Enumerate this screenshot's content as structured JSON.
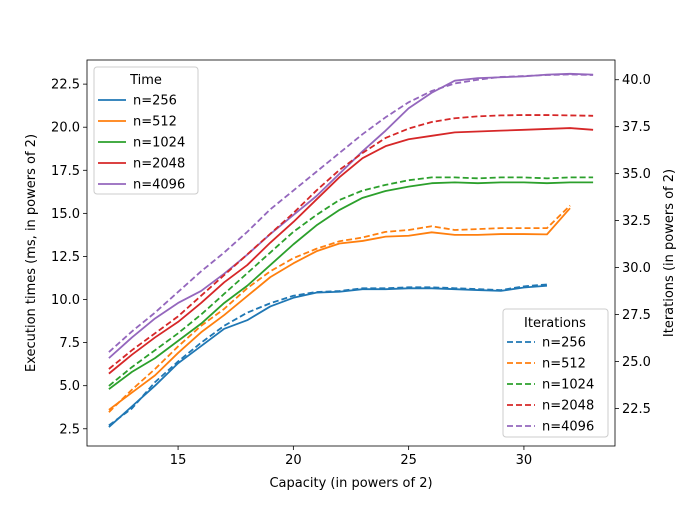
{
  "chart_data": {
    "type": "line",
    "xlabel": "Capacity (in powers of 2)",
    "ylabel_left": "Execution times (ms, in powers of 2)",
    "ylabel_right": "Iterations (in powers of 2)",
    "xlim": [
      11.05,
      33.95
    ],
    "ylim_left": [
      1.5,
      23.9
    ],
    "ylim_right": [
      20.5,
      41.05
    ],
    "xticks": [
      15,
      20,
      25,
      30
    ],
    "yticks_left": [
      2.5,
      5.0,
      7.5,
      10.0,
      12.5,
      15.0,
      17.5,
      20.0,
      22.5
    ],
    "yticks_right": [
      22.5,
      25.0,
      27.5,
      30.0,
      32.5,
      35.0,
      37.5,
      40.0
    ],
    "legend_time": {
      "title": "Time",
      "position": "upper left"
    },
    "legend_iterations": {
      "title": "Iterations",
      "position": "lower right"
    },
    "colors": {
      "n=256": "#1f77b4",
      "n=512": "#ff7f0e",
      "n=1024": "#2ca02c",
      "n=2048": "#d62728",
      "n=4096": "#9467bd"
    },
    "time_series": [
      {
        "name": "n=256",
        "x": [
          12,
          13,
          14,
          15,
          16,
          17,
          18,
          19,
          20,
          21,
          22,
          23,
          24,
          25,
          26,
          27,
          28,
          29,
          30,
          31
        ],
        "values": [
          2.6,
          3.8,
          5.0,
          6.3,
          7.3,
          8.3,
          8.8,
          9.6,
          10.1,
          10.4,
          10.45,
          10.6,
          10.6,
          10.65,
          10.65,
          10.6,
          10.55,
          10.5,
          10.7,
          10.8
        ]
      },
      {
        "name": "n=512",
        "x": [
          12,
          13,
          14,
          15,
          16,
          17,
          18,
          19,
          20,
          21,
          22,
          23,
          24,
          25,
          26,
          27,
          28,
          29,
          30,
          31,
          32
        ],
        "values": [
          3.6,
          4.6,
          5.6,
          6.9,
          8.1,
          9.1,
          10.2,
          11.3,
          12.1,
          12.8,
          13.25,
          13.4,
          13.65,
          13.7,
          13.9,
          13.75,
          13.75,
          13.8,
          13.8,
          13.78,
          15.3
        ]
      },
      {
        "name": "n=1024",
        "x": [
          12,
          13,
          14,
          15,
          16,
          17,
          18,
          19,
          20,
          21,
          22,
          23,
          24,
          25,
          26,
          27,
          28,
          29,
          30,
          31,
          32,
          33
        ],
        "values": [
          4.8,
          5.8,
          6.6,
          7.6,
          8.6,
          9.8,
          10.8,
          12.0,
          13.2,
          14.3,
          15.2,
          15.9,
          16.3,
          16.55,
          16.75,
          16.8,
          16.75,
          16.8,
          16.8,
          16.75,
          16.8,
          16.8
        ]
      },
      {
        "name": "n=2048",
        "x": [
          12,
          13,
          14,
          15,
          16,
          17,
          18,
          19,
          20,
          21,
          22,
          23,
          24,
          25,
          26,
          27,
          28,
          29,
          30,
          31,
          32,
          33
        ],
        "values": [
          5.7,
          6.8,
          7.8,
          8.7,
          9.8,
          11.0,
          12.0,
          13.3,
          14.5,
          15.8,
          17.1,
          18.2,
          18.9,
          19.3,
          19.5,
          19.7,
          19.75,
          19.8,
          19.85,
          19.9,
          19.95,
          19.85
        ]
      },
      {
        "name": "n=4096",
        "x": [
          12,
          13,
          14,
          15,
          16,
          17,
          18,
          19,
          20,
          21,
          22,
          23,
          24,
          25,
          26,
          27,
          28,
          29,
          30,
          31,
          32,
          33
        ],
        "values": [
          6.6,
          7.8,
          8.9,
          9.8,
          10.5,
          11.5,
          12.6,
          13.8,
          14.9,
          16.0,
          17.3,
          18.6,
          19.8,
          21.1,
          22.0,
          22.7,
          22.85,
          22.9,
          22.95,
          23.05,
          23.1,
          23.05
        ]
      }
    ],
    "iteration_series": [
      {
        "name": "n=256",
        "x": [
          12,
          13,
          14,
          15,
          16,
          17,
          18,
          19,
          20,
          21,
          22,
          23,
          24,
          25,
          26,
          27,
          28,
          29,
          30,
          31
        ],
        "values": [
          21.6,
          22.5,
          23.9,
          25.0,
          26.0,
          26.9,
          27.6,
          28.1,
          28.5,
          28.7,
          28.75,
          28.9,
          28.9,
          28.95,
          28.95,
          28.9,
          28.85,
          28.8,
          29.0,
          29.1
        ]
      },
      {
        "name": "n=512",
        "x": [
          12,
          13,
          14,
          15,
          16,
          17,
          18,
          19,
          20,
          21,
          22,
          23,
          24,
          25,
          26,
          27,
          28,
          29,
          30,
          31,
          32
        ],
        "values": [
          22.3,
          23.5,
          24.6,
          25.8,
          26.9,
          27.8,
          28.9,
          29.8,
          30.5,
          31.0,
          31.4,
          31.6,
          31.9,
          32.0,
          32.2,
          32.0,
          32.05,
          32.1,
          32.1,
          32.1,
          33.3
        ]
      },
      {
        "name": "n=1024",
        "x": [
          12,
          13,
          14,
          15,
          16,
          17,
          18,
          19,
          20,
          21,
          22,
          23,
          24,
          25,
          26,
          27,
          28,
          29,
          30,
          31,
          32,
          33
        ],
        "values": [
          23.7,
          24.7,
          25.6,
          26.5,
          27.5,
          28.6,
          29.7,
          30.8,
          31.9,
          32.8,
          33.6,
          34.1,
          34.4,
          34.65,
          34.8,
          34.8,
          34.75,
          34.8,
          34.8,
          34.75,
          34.8,
          34.8
        ]
      },
      {
        "name": "n=2048",
        "x": [
          12,
          13,
          14,
          15,
          16,
          17,
          18,
          19,
          20,
          21,
          22,
          23,
          24,
          25,
          26,
          27,
          28,
          29,
          30,
          31,
          32,
          33
        ],
        "values": [
          24.6,
          25.6,
          26.5,
          27.4,
          28.5,
          29.6,
          30.7,
          31.8,
          32.9,
          34.1,
          35.2,
          36.1,
          36.9,
          37.4,
          37.75,
          37.95,
          38.05,
          38.1,
          38.12,
          38.12,
          38.1,
          38.08
        ]
      },
      {
        "name": "n=4096",
        "x": [
          12,
          13,
          14,
          15,
          16,
          17,
          18,
          19,
          20,
          21,
          22,
          23,
          24,
          25,
          26,
          27,
          28,
          29,
          30,
          31,
          32,
          33
        ],
        "values": [
          25.5,
          26.6,
          27.6,
          28.7,
          29.8,
          30.8,
          31.9,
          33.1,
          34.1,
          35.1,
          36.1,
          37.1,
          38.0,
          38.8,
          39.4,
          39.8,
          40.0,
          40.15,
          40.2,
          40.25,
          40.28,
          40.25
        ]
      }
    ]
  }
}
